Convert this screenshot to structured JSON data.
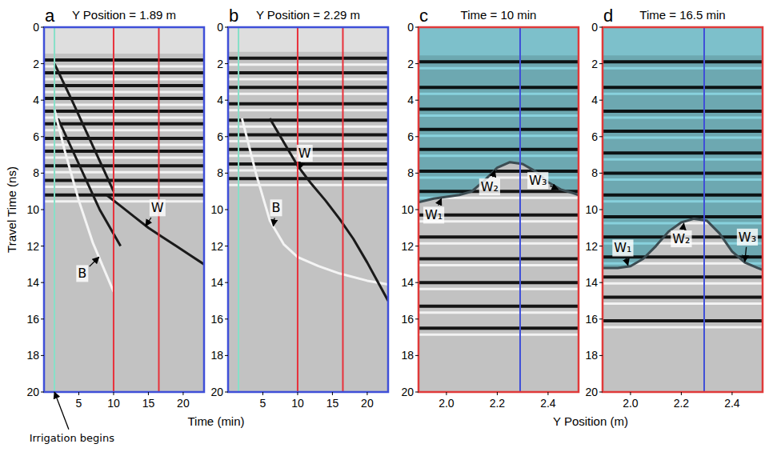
{
  "chart_data": [
    {
      "type": "radargram",
      "panel_label": "a",
      "title": "Y Position = 1.89 m",
      "ylabel": "Travel Time (ns)",
      "xlabel": "Time (min)",
      "color": "#3f4fd8",
      "xlim": [
        0,
        23
      ],
      "ylim": [
        0,
        20
      ],
      "xticks": [
        5,
        10,
        15,
        20
      ],
      "yticks": [
        0,
        2,
        4,
        6,
        8,
        10,
        12,
        14,
        16,
        18,
        20
      ],
      "reflectors": [
        1.8,
        2.5,
        3.2,
        3.9,
        4.6,
        5.3,
        6.1,
        6.8,
        7.6,
        8.4,
        9.2
      ],
      "vlines": [
        {
          "x": 1.5,
          "color": "#86e0c8"
        },
        {
          "x": 10,
          "color": "#e8303a"
        },
        {
          "x": 16.5,
          "color": "#e8303a"
        }
      ],
      "series": [
        {
          "type": "reflection",
          "color": "#1a1a1a",
          "x": [
            1.5,
            4,
            7,
            10
          ],
          "values": [
            2,
            4,
            6.5,
            9
          ]
        },
        {
          "type": "reflection",
          "color": "#1a1a1a",
          "x": [
            2,
            5,
            8,
            11
          ],
          "values": [
            5,
            7.5,
            10,
            12
          ]
        },
        {
          "type": "reflection",
          "color": "#f4f4f4",
          "x": [
            1.5,
            3,
            5,
            7,
            9,
            10
          ],
          "values": [
            4.5,
            6.8,
            9.5,
            11.8,
            13.6,
            14.5
          ]
        },
        {
          "type": "reflection",
          "color": "#1a1a1a",
          "x": [
            9,
            11,
            13,
            15,
            17,
            19,
            21,
            23
          ],
          "values": [
            9.2,
            9.8,
            10.4,
            11,
            11.5,
            12,
            12.5,
            13
          ]
        }
      ],
      "annotations": [
        {
          "text": "B",
          "x": 7.9,
          "y": 12.6,
          "label_x": 5.5,
          "label_y": 13.5
        },
        {
          "text": "W",
          "x": 14.6,
          "y": 10.9,
          "label_x": 16.3,
          "label_y": 9.9
        },
        {
          "text": "Irrigation begins",
          "x": 1.5,
          "y": 20,
          "label_x": 4,
          "label_y": 22.5
        }
      ]
    },
    {
      "type": "radargram",
      "panel_label": "b",
      "title": "Y Position = 2.29 m",
      "color": "#3f4fd8",
      "xlim": [
        0,
        23
      ],
      "ylim": [
        0,
        20
      ],
      "xticks": [
        5,
        10,
        15,
        20
      ],
      "yticks": [
        0,
        2,
        4,
        6,
        8,
        10,
        12,
        14,
        16,
        18,
        20
      ],
      "reflectors": [
        1.7,
        2.5,
        3.3,
        4.2,
        5.1,
        5.9,
        6.7,
        7.5,
        8.3
      ],
      "vlines": [
        {
          "x": 1.5,
          "color": "#86e0c8"
        },
        {
          "x": 10,
          "color": "#e8303a"
        },
        {
          "x": 16.5,
          "color": "#e8303a"
        }
      ],
      "series": [
        {
          "type": "reflection",
          "color": "#f4f4f4",
          "x": [
            2,
            4,
            6,
            8,
            10,
            13,
            16,
            20,
            23
          ],
          "values": [
            5,
            8,
            10.6,
            11.9,
            12.6,
            13.1,
            13.5,
            13.9,
            14.1
          ]
        },
        {
          "type": "reflection",
          "color": "#1a1a1a",
          "x": [
            6,
            8,
            10,
            12,
            14,
            16,
            18,
            20,
            22,
            23
          ],
          "values": [
            5,
            6.3,
            7.6,
            8.6,
            9.5,
            10.5,
            11.6,
            12.9,
            14.3,
            15
          ]
        }
      ],
      "annotations": [
        {
          "text": "B",
          "x": 6.5,
          "y": 10.9,
          "label_x": 6.9,
          "label_y": 9.9
        },
        {
          "text": "W",
          "x": 10.3,
          "y": 7.75,
          "label_x": 11,
          "label_y": 6.9
        }
      ]
    },
    {
      "type": "radargram",
      "panel_label": "c",
      "title": "Time = 10 min",
      "xlabel": "Y Position (m)",
      "color": "#e03a3a",
      "xlim": [
        1.89,
        2.52
      ],
      "ylim": [
        0,
        20
      ],
      "xticks": [
        {
          "value": 2,
          "label": "2.0"
        },
        2.2,
        2.4
      ],
      "yticks": [
        0,
        2,
        4,
        6,
        8,
        10,
        12,
        14,
        16,
        18,
        20
      ],
      "reflectors": [
        1.9,
        3.3,
        4.5,
        5.6,
        6.7,
        7.9,
        9.0,
        10.3,
        11.5,
        12.7,
        14.0,
        15.3,
        16.5
      ],
      "vlines": [
        {
          "x": 1.89,
          "color": "#3f4fd8"
        },
        {
          "x": 2.29,
          "color": "#3f4fd8"
        }
      ],
      "series": [
        {
          "type": "wetting_front",
          "color": "#3c4c52",
          "x": [
            1.89,
            1.95,
            2.0,
            2.05,
            2.1,
            2.15,
            2.2,
            2.25,
            2.3,
            2.35,
            2.4,
            2.45,
            2.5,
            2.52
          ],
          "values": [
            9.6,
            9.4,
            9.3,
            9.2,
            9.0,
            8.4,
            7.7,
            7.4,
            7.5,
            7.9,
            8.5,
            8.9,
            9.1,
            9.2
          ]
        }
      ],
      "annotations": [
        {
          "text": "W₁",
          "x": 1.98,
          "y": 9.4,
          "label_x": 1.95,
          "label_y": 10.3
        },
        {
          "text": "W₂",
          "x": 2.19,
          "y": 7.85,
          "label_x": 2.17,
          "label_y": 8.75
        },
        {
          "text": "W₃",
          "x": 2.44,
          "y": 8.9,
          "label_x": 2.36,
          "label_y": 8.4
        }
      ]
    },
    {
      "type": "radargram",
      "panel_label": "d",
      "title": "Time = 16.5 min",
      "color": "#e03a3a",
      "xlim": [
        1.89,
        2.52
      ],
      "ylim": [
        0,
        20
      ],
      "xticks": [
        {
          "value": 2,
          "label": "2.0"
        },
        2.2,
        2.4
      ],
      "yticks": [
        0,
        2,
        4,
        6,
        8,
        10,
        12,
        14,
        16,
        18,
        20
      ],
      "reflectors": [
        1.9,
        3.3,
        4.6,
        5.7,
        6.9,
        8.0,
        9.2,
        10.4,
        11.5,
        12.6,
        13.7,
        14.8,
        16.1
      ],
      "vlines": [
        {
          "x": 1.89,
          "color": "#3f4fd8"
        },
        {
          "x": 2.29,
          "color": "#3f4fd8"
        }
      ],
      "series": [
        {
          "type": "wetting_front",
          "color": "#3c4c52",
          "x": [
            1.89,
            1.95,
            2.0,
            2.05,
            2.1,
            2.15,
            2.2,
            2.25,
            2.3,
            2.35,
            2.4,
            2.45,
            2.5,
            2.52
          ],
          "values": [
            13.2,
            13.2,
            13.1,
            12.7,
            12.0,
            11.2,
            10.7,
            10.5,
            10.6,
            11.3,
            12.3,
            12.9,
            13.2,
            13.3
          ]
        }
      ],
      "annotations": [
        {
          "text": "W₁",
          "x": 1.99,
          "y": 13.05,
          "label_x": 1.97,
          "label_y": 12.1
        },
        {
          "text": "W₂",
          "x": 2.21,
          "y": 10.75,
          "label_x": 2.2,
          "label_y": 11.6
        },
        {
          "text": "W₃",
          "x": 2.45,
          "y": 12.85,
          "label_x": 2.46,
          "label_y": 11.5
        }
      ]
    }
  ]
}
